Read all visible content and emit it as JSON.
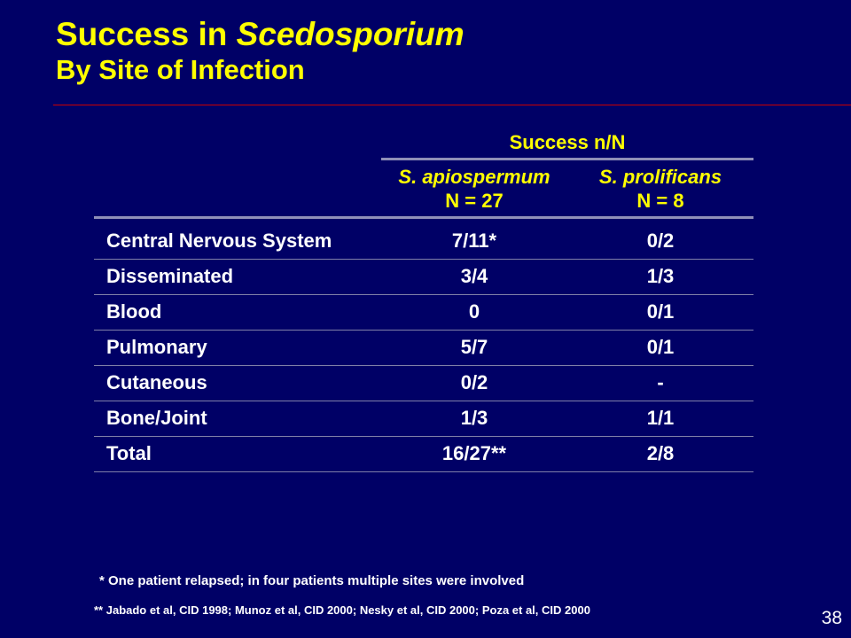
{
  "title": {
    "prefix": "Success in ",
    "genus": "Scedosporium",
    "subtitle": "By Site of Infection"
  },
  "table": {
    "group_header": "Success n/N",
    "columns": [
      {
        "species": "S. apiospermum",
        "n": "N = 27"
      },
      {
        "species": "S. prolificans",
        "n": "N = 8"
      }
    ],
    "rows": [
      {
        "site": "Central Nervous System",
        "apiospermum": "7/11*",
        "prolificans": "0/2"
      },
      {
        "site": "Disseminated",
        "apiospermum": "3/4",
        "prolificans": "1/3"
      },
      {
        "site": "Blood",
        "apiospermum": "0",
        "prolificans": "0/1"
      },
      {
        "site": "Pulmonary",
        "apiospermum": "5/7",
        "prolificans": "0/1"
      },
      {
        "site": "Cutaneous",
        "apiospermum": "0/2",
        "prolificans": "-"
      },
      {
        "site": "Bone/Joint",
        "apiospermum": "1/3",
        "prolificans": "1/1"
      },
      {
        "site": "Total",
        "apiospermum": "16/27**",
        "prolificans": "2/8"
      }
    ]
  },
  "footnotes": {
    "note1": "* One patient relapsed; in four patients multiple sites were involved",
    "note2": "** Jabado et al, CID 1998; Munoz et al, CID 2000; Nesky et al, CID 2000; Poza et al, CID 2000"
  },
  "page_number": "38",
  "colors": {
    "background": "#000066",
    "title": "#ffff00",
    "body_text": "#ffffff",
    "title_rule": "#cc0000"
  }
}
